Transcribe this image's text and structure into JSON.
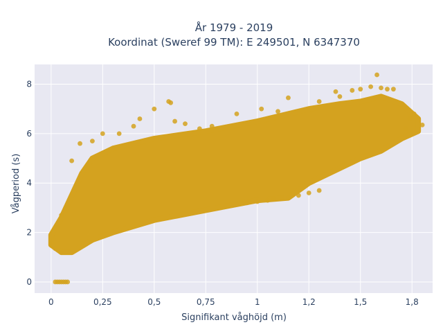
{
  "chart_data": {
    "type": "scatter",
    "title": "År 1979 - 2019",
    "subtitle": "Koordinat (Sweref 99 TM): E 249501, N 6347370",
    "xlabel": "Signifikant våghöjd (m)",
    "ylabel": "Vågperiod (s)",
    "xlim": [
      -0.08,
      1.85
    ],
    "ylim": [
      -0.45,
      8.8
    ],
    "x_ticks": [
      0,
      0.25,
      0.5,
      0.75,
      1,
      1.25,
      1.5,
      1.75
    ],
    "x_tick_labels": [
      "0",
      "0,25",
      "0,5",
      "0,75",
      "1",
      "1,2",
      "1,5",
      "1,8"
    ],
    "y_ticks": [
      0,
      2,
      4,
      6,
      8
    ],
    "y_tick_labels": [
      "0",
      "2",
      "4",
      "6",
      "8"
    ],
    "grid": true,
    "background": "#e8e8f2",
    "marker_color": "#d4a21f",
    "series": [
      {
        "upper_envelope": [
          [
            0.0,
            1.9
          ],
          [
            0.05,
            2.6
          ],
          [
            0.1,
            3.5
          ],
          [
            0.15,
            4.4
          ],
          [
            0.2,
            5.0
          ],
          [
            0.3,
            5.4
          ],
          [
            0.5,
            5.8
          ],
          [
            0.75,
            6.1
          ],
          [
            1.0,
            6.5
          ],
          [
            1.25,
            7.0
          ],
          [
            1.4,
            7.2
          ],
          [
            1.5,
            7.3
          ],
          [
            1.6,
            7.5
          ],
          [
            1.7,
            7.2
          ],
          [
            1.78,
            6.6
          ]
        ],
        "lower_envelope": [
          [
            0.0,
            1.5
          ],
          [
            0.05,
            1.2
          ],
          [
            0.1,
            1.2
          ],
          [
            0.2,
            1.7
          ],
          [
            0.3,
            2.0
          ],
          [
            0.5,
            2.5
          ],
          [
            0.75,
            2.9
          ],
          [
            1.0,
            3.3
          ],
          [
            1.15,
            3.4
          ],
          [
            1.25,
            4.0
          ],
          [
            1.5,
            5.0
          ],
          [
            1.6,
            5.3
          ],
          [
            1.7,
            5.8
          ],
          [
            1.78,
            6.1
          ]
        ],
        "points": [
          [
            0.02,
            0.0
          ],
          [
            0.03,
            0.0
          ],
          [
            0.04,
            0.0
          ],
          [
            0.05,
            0.0
          ],
          [
            0.06,
            0.0
          ],
          [
            0.07,
            0.0
          ],
          [
            0.08,
            0.0
          ],
          [
            0.0,
            1.55
          ],
          [
            0.01,
            1.75
          ],
          [
            0.02,
            1.35
          ],
          [
            0.03,
            2.2
          ],
          [
            0.05,
            2.7
          ],
          [
            0.07,
            3.0
          ],
          [
            0.1,
            4.9
          ],
          [
            0.14,
            5.6
          ],
          [
            0.2,
            5.7
          ],
          [
            0.25,
            6.0
          ],
          [
            0.33,
            6.0
          ],
          [
            0.4,
            6.3
          ],
          [
            0.43,
            6.6
          ],
          [
            0.5,
            7.0
          ],
          [
            0.57,
            7.3
          ],
          [
            0.58,
            7.25
          ],
          [
            0.6,
            6.5
          ],
          [
            0.65,
            6.4
          ],
          [
            0.72,
            6.2
          ],
          [
            0.78,
            6.3
          ],
          [
            0.9,
            6.8
          ],
          [
            1.02,
            7.0
          ],
          [
            1.1,
            6.9
          ],
          [
            1.15,
            7.45
          ],
          [
            1.3,
            7.3
          ],
          [
            1.38,
            7.7
          ],
          [
            1.4,
            7.5
          ],
          [
            1.46,
            7.75
          ],
          [
            1.5,
            7.8
          ],
          [
            1.55,
            7.9
          ],
          [
            1.58,
            8.38
          ],
          [
            1.6,
            7.85
          ],
          [
            1.63,
            7.8
          ],
          [
            1.66,
            7.8
          ],
          [
            1.72,
            6.2
          ],
          [
            1.74,
            6.6
          ],
          [
            1.76,
            6.8
          ],
          [
            1.8,
            6.35
          ],
          [
            0.95,
            3.2
          ],
          [
            1.0,
            3.25
          ],
          [
            1.05,
            3.3
          ],
          [
            1.08,
            3.35
          ],
          [
            1.12,
            3.4
          ],
          [
            1.15,
            3.42
          ],
          [
            1.25,
            3.6
          ],
          [
            1.2,
            3.5
          ],
          [
            1.3,
            3.7
          ]
        ]
      }
    ]
  }
}
